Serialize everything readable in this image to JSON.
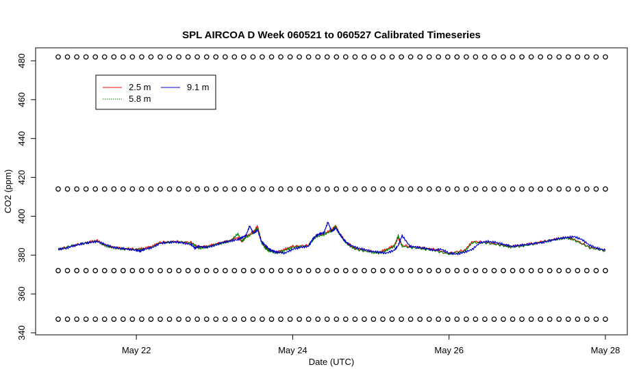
{
  "chart_data": {
    "type": "line",
    "title": "SPL AIRCOA D  Week 060521 to 060527  Calibrated Timeseries",
    "xlabel": "Date (UTC)",
    "ylabel": "CO2 (ppm)",
    "xlim": [
      21.0,
      28.0
    ],
    "ylim": [
      340,
      485
    ],
    "x_ticks": [
      {
        "value": 22,
        "label": "May 22"
      },
      {
        "value": 24,
        "label": "May 24"
      },
      {
        "value": 26,
        "label": "May 26"
      },
      {
        "value": 28,
        "label": "May 28"
      }
    ],
    "y_ticks": [
      340,
      360,
      380,
      400,
      420,
      440,
      460,
      480
    ],
    "grid": false,
    "legend": {
      "placement": "top-left",
      "entries": [
        {
          "name": "2.5 m",
          "color": "#ff0000"
        },
        {
          "name": "5.8 m",
          "color": "#008000"
        },
        {
          "name": "9.1 m",
          "color": "#0000cc"
        }
      ]
    },
    "series": [
      {
        "name": "2.5 m",
        "color": "#ff0000",
        "x": [
          21.0,
          21.2,
          21.4,
          21.5,
          21.6,
          21.7,
          21.8,
          22.0,
          22.1,
          22.2,
          22.3,
          22.5,
          22.7,
          22.8,
          22.9,
          23.0,
          23.1,
          23.2,
          23.3,
          23.35,
          23.4,
          23.5,
          23.55,
          23.6,
          23.65,
          23.7,
          23.8,
          23.9,
          24.0,
          24.2,
          24.3,
          24.4,
          24.5,
          24.55,
          24.6,
          24.7,
          24.8,
          25.0,
          25.1,
          25.2,
          25.3,
          25.35,
          25.4,
          25.6,
          25.8,
          26.0,
          26.2,
          26.3,
          26.5,
          26.7,
          26.8,
          27.0,
          27.2,
          27.4,
          27.5,
          27.6,
          27.8,
          28.0
        ],
        "y": [
          383,
          385,
          386.8,
          387.5,
          385,
          384,
          383.5,
          383,
          383.5,
          384.5,
          386.5,
          387,
          386.5,
          384,
          384.5,
          385.5,
          386.5,
          387.5,
          389,
          387,
          389.5,
          392,
          395,
          387,
          384,
          382.5,
          381.5,
          383,
          384.5,
          385,
          390,
          391,
          393,
          395,
          391,
          386,
          383.5,
          382,
          381.5,
          383,
          385,
          389,
          385,
          384,
          383,
          381,
          382.5,
          387,
          386.5,
          385,
          384.5,
          385.5,
          387,
          388.5,
          389,
          388,
          384,
          382.5
        ]
      },
      {
        "name": "5.8 m",
        "color": "#008000",
        "x": [
          21.0,
          21.2,
          21.4,
          21.5,
          21.6,
          21.7,
          21.8,
          22.0,
          22.1,
          22.2,
          22.3,
          22.5,
          22.7,
          22.8,
          22.9,
          23.0,
          23.1,
          23.2,
          23.3,
          23.35,
          23.4,
          23.5,
          23.55,
          23.6,
          23.65,
          23.7,
          23.8,
          23.9,
          24.0,
          24.2,
          24.3,
          24.4,
          24.5,
          24.55,
          24.6,
          24.7,
          24.8,
          25.0,
          25.1,
          25.2,
          25.3,
          25.35,
          25.4,
          25.6,
          25.8,
          26.0,
          26.2,
          26.3,
          26.5,
          26.7,
          26.8,
          27.0,
          27.2,
          27.4,
          27.5,
          27.6,
          27.8,
          28.0
        ],
        "y": [
          383,
          385,
          386.5,
          387.2,
          384.8,
          383.8,
          383.2,
          382.8,
          383,
          384,
          386.2,
          386.8,
          386.2,
          383.5,
          384,
          385.2,
          386.2,
          387.2,
          391,
          387,
          389,
          391.5,
          394,
          386.5,
          383.5,
          382,
          381,
          382.5,
          384,
          384.8,
          389.5,
          390.5,
          392.5,
          395,
          390.5,
          385.5,
          383,
          381.5,
          381,
          382.5,
          384.5,
          390,
          384.5,
          383.5,
          382.5,
          380.5,
          382,
          386.5,
          386.2,
          384.8,
          384,
          385,
          386.8,
          388.2,
          389,
          387.8,
          383.8,
          382.2
        ]
      },
      {
        "name": "9.1 m",
        "color": "#0000cc",
        "x": [
          21.0,
          21.1,
          21.2,
          21.3,
          21.4,
          21.5,
          21.6,
          21.7,
          21.8,
          21.9,
          22.0,
          22.05,
          22.1,
          22.2,
          22.3,
          22.4,
          22.5,
          22.6,
          22.7,
          22.75,
          22.8,
          22.9,
          23.0,
          23.1,
          23.2,
          23.3,
          23.35,
          23.4,
          23.45,
          23.5,
          23.55,
          23.6,
          23.65,
          23.7,
          23.75,
          23.8,
          23.9,
          24.0,
          24.1,
          24.2,
          24.25,
          24.3,
          24.35,
          24.4,
          24.45,
          24.5,
          24.55,
          24.6,
          24.65,
          24.7,
          24.8,
          24.9,
          25.0,
          25.1,
          25.2,
          25.3,
          25.35,
          25.4,
          25.5,
          25.6,
          25.7,
          25.8,
          25.9,
          26.0,
          26.1,
          26.2,
          26.3,
          26.4,
          26.5,
          26.6,
          26.7,
          26.8,
          26.9,
          27.0,
          27.1,
          27.2,
          27.3,
          27.4,
          27.5,
          27.6,
          27.7,
          27.8,
          27.9,
          28.0
        ],
        "y": [
          383,
          383.5,
          384.8,
          385.8,
          386.5,
          387,
          385.5,
          384,
          383.5,
          383,
          382.5,
          382,
          383,
          383.8,
          386,
          386.5,
          386.8,
          386.2,
          385.5,
          383.5,
          384.5,
          384,
          385,
          386.5,
          387.2,
          388,
          389,
          390,
          395,
          391,
          393,
          387,
          385,
          383,
          382,
          381.5,
          381,
          383,
          384,
          384.5,
          388,
          390,
          391,
          391.5,
          397,
          392,
          394,
          391,
          388,
          386,
          384,
          383,
          382,
          381.5,
          381,
          382.5,
          385,
          390,
          384.5,
          384,
          383.5,
          382.5,
          383,
          381,
          380.5,
          381.5,
          383,
          386.5,
          387,
          386.5,
          385.5,
          384.5,
          385,
          385.5,
          386,
          386.5,
          387.5,
          388.5,
          389,
          389.5,
          388,
          385,
          383.5,
          382.5
        ]
      }
    ],
    "reference_markers": [
      {
        "level": 482,
        "marker": "o",
        "x_start": 21.0,
        "x_end": 28.0,
        "count": 60
      },
      {
        "level": 414,
        "marker": "o",
        "x_start": 21.0,
        "x_end": 28.0,
        "count": 60
      },
      {
        "level": 372,
        "marker": "o",
        "x_start": 21.0,
        "x_end": 28.0,
        "count": 60
      },
      {
        "level": 347,
        "marker": "o",
        "x_start": 21.0,
        "x_end": 28.0,
        "count": 60
      }
    ]
  }
}
